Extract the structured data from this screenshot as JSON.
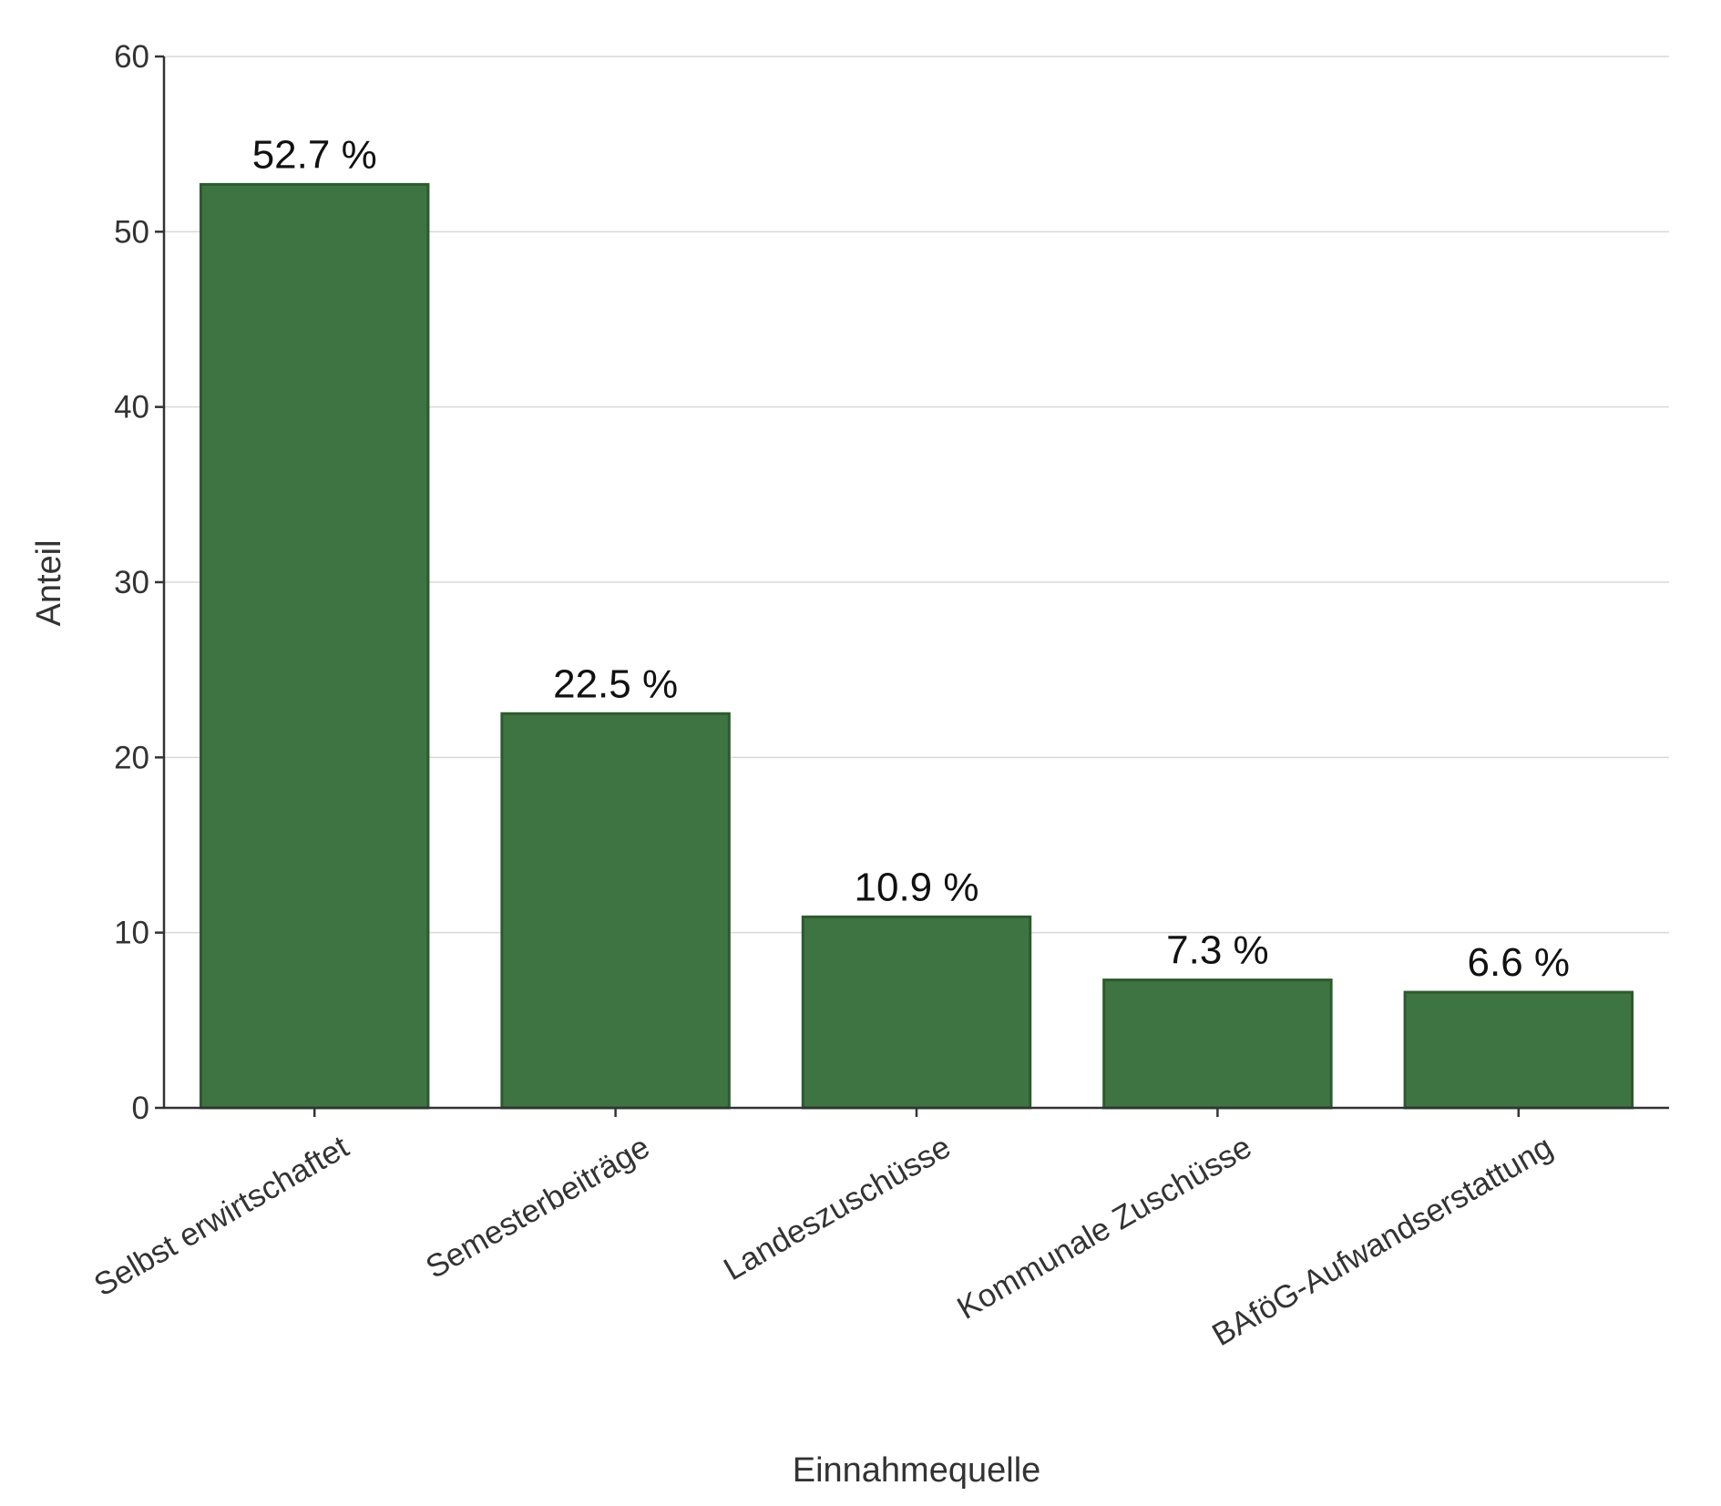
{
  "chart_data": {
    "type": "bar",
    "title": "",
    "xlabel": "Einnahmequelle",
    "ylabel": "Anteil",
    "ylim": [
      0,
      60
    ],
    "yticks": [
      0,
      10,
      20,
      30,
      40,
      50,
      60
    ],
    "grid": true,
    "categories": [
      "Selbst erwirtschaftet",
      "Semesterbeiträge",
      "Landeszuschüsse",
      "Kommunale Zuschüsse",
      "BAföG-Aufwandserstattung"
    ],
    "values": [
      52.7,
      22.5,
      10.9,
      7.3,
      6.6
    ],
    "data_labels": [
      "52.7 %",
      "22.5 %",
      "10.9 %",
      "7.3 %",
      "6.6 %"
    ],
    "colors": {
      "bar_fill": "#3e7441",
      "bar_stroke": "#2d5a30"
    }
  }
}
